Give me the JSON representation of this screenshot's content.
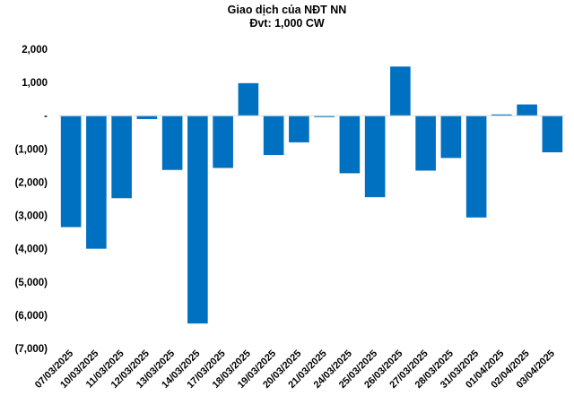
{
  "chart_data": {
    "type": "bar",
    "title": "Giao dịch của NĐT NN",
    "subtitle": "Đvt: 1,000 CW",
    "xlabel": "",
    "ylabel": "",
    "ylim": [
      -7000,
      2000
    ],
    "yticks": [
      2000,
      1000,
      0,
      -1000,
      -2000,
      -3000,
      -4000,
      -5000,
      -6000,
      -7000
    ],
    "ytick_labels": [
      "2,000",
      "1,000",
      "-",
      "(1,000)",
      "(2,000)",
      "(3,000)",
      "(4,000)",
      "(5,000)",
      "(6,000)",
      "(7,000)"
    ],
    "grid": false,
    "bar_color": "#0070C0",
    "categories": [
      "07/03/2025",
      "10/03/2025",
      "11/03/2025",
      "12/03/2025",
      "13/03/2025",
      "14/03/2025",
      "17/03/2025",
      "18/03/2025",
      "19/03/2025",
      "20/03/2025",
      "21/03/2025",
      "24/03/2025",
      "25/03/2025",
      "26/03/2025",
      "27/03/2025",
      "28/03/2025",
      "31/03/2025",
      "01/04/2025",
      "02/04/2025",
      "03/04/2025"
    ],
    "values": [
      -3350,
      -4000,
      -2480,
      -100,
      -1630,
      -6250,
      -1570,
      980,
      -1180,
      -800,
      -40,
      -1730,
      -2450,
      1480,
      -1650,
      -1270,
      -3060,
      40,
      340,
      -1100
    ]
  }
}
